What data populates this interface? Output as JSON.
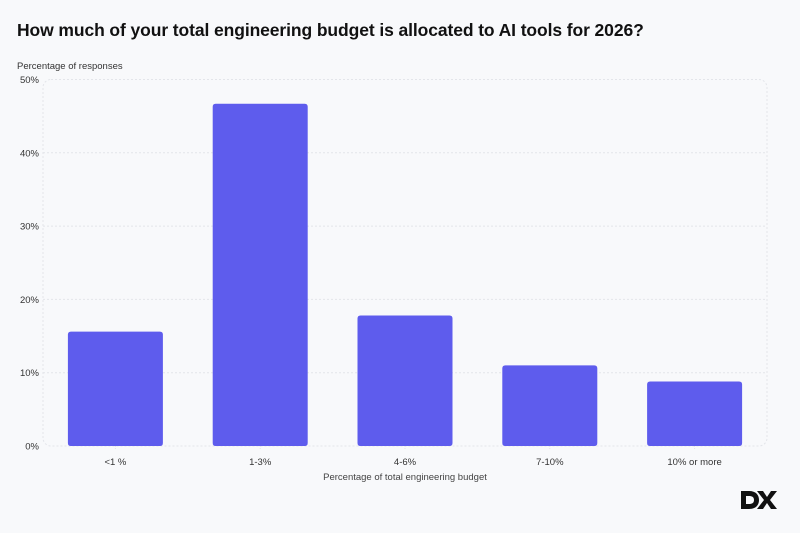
{
  "chart_data": {
    "type": "bar",
    "title": "How much of your total engineering budget is allocated to AI tools for 2026?",
    "xlabel": "Percentage of total engineering budget",
    "ylabel": "Percentage of responses",
    "categories": [
      "<1 %",
      "1-3%",
      "4-6%",
      "7-10%",
      "10% or more"
    ],
    "values": [
      15.6,
      46.7,
      17.8,
      11.0,
      8.8
    ],
    "ylim": [
      0,
      50
    ],
    "yticks": [
      0,
      10,
      20,
      30,
      40,
      50
    ],
    "ytick_labels": [
      "0%",
      "10%",
      "20%",
      "30%",
      "40%",
      "50%"
    ],
    "grid": true,
    "bar_color": "#5e5ced",
    "legend": "none"
  },
  "brand": {
    "logo_text": "DX"
  }
}
